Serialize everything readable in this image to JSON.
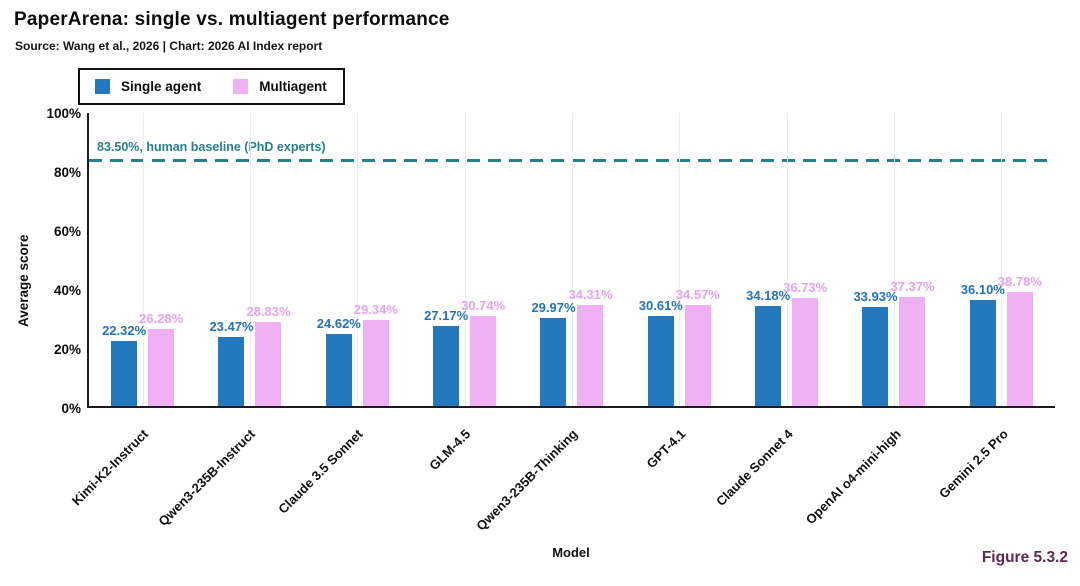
{
  "header": {
    "title": "PaperArena: single vs. multiagent performance",
    "subtitle": "Source: Wang et al., 2026 | Chart: 2026 AI Index report"
  },
  "legend": {
    "items": [
      {
        "label": "Single agent",
        "color": "#2478bd"
      },
      {
        "label": "Multiagent",
        "color": "#efb0f5"
      }
    ]
  },
  "chart_data": {
    "type": "bar",
    "title": "PaperArena: single vs. multiagent performance",
    "xlabel": "Model",
    "ylabel": "Average score",
    "ylim": [
      0,
      100
    ],
    "y_ticks": [
      "0%",
      "20%",
      "40%",
      "60%",
      "80%",
      "100%"
    ],
    "grid": "vertical-per-category",
    "legend_position": "top-left",
    "categories": [
      "Kimi-K2-Instruct",
      "Qwen3-235B-Instruct",
      "Claude 3.5 Sonnet",
      "GLM-4.5",
      "Qwen3-235B-Thinking",
      "GPT-4.1",
      "Claude Sonnet 4",
      "OpenAI o4-mini-high",
      "Gemini 2.5 Pro"
    ],
    "series": [
      {
        "name": "Single agent",
        "color": "#2478bd",
        "label_color": "#2274b9",
        "values": [
          22.32,
          23.47,
          24.62,
          27.17,
          29.97,
          30.61,
          34.18,
          33.93,
          36.1
        ],
        "labels": [
          "22.32%",
          "23.47%",
          "24.62%",
          "27.17%",
          "29.97%",
          "30.61%",
          "34.18%",
          "33.93%",
          "36.10%"
        ]
      },
      {
        "name": "Multiagent",
        "color": "#efb0f5",
        "label_color": "#e7a3f0",
        "values": [
          26.28,
          28.83,
          29.34,
          30.74,
          34.31,
          34.57,
          36.73,
          37.37,
          38.78
        ],
        "labels": [
          "26.28%",
          "28.83%",
          "29.34%",
          "30.74%",
          "34.31%",
          "34.57%",
          "36.73%",
          "37.37%",
          "38.78%"
        ]
      }
    ],
    "baseline": {
      "value": 83.5,
      "label": "83.50%, human baseline (PhD experts)",
      "color": "#28808f"
    }
  },
  "footer": {
    "figure_label": "Figure 5.3.2"
  }
}
